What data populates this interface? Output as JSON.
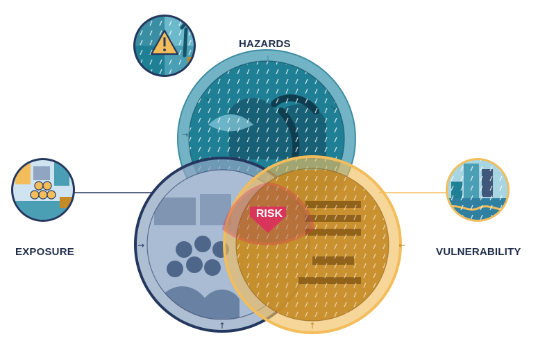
{
  "diagram": {
    "labels": {
      "hazards": "HAZARDS",
      "exposure": "EXPOSURE",
      "vulnerability": "VULNERABILITY",
      "risk": "RISK"
    },
    "colors": {
      "hazards_ring": "#4a9fb5",
      "hazards_fill": "#1f7f95",
      "exposure_ring": "#24375e",
      "exposure_fill": "#8fa5c2",
      "vulnerability_ring": "#f2bd5a",
      "vulnerability_fill": "#c48a25",
      "risk": "#d9345a",
      "label_text": "#1f2d4a"
    },
    "icons": {
      "top_left_medallion": "storm-warning-icon",
      "left_medallion": "crowd-city-icon",
      "right_medallion": "flooded-town-icon"
    }
  }
}
